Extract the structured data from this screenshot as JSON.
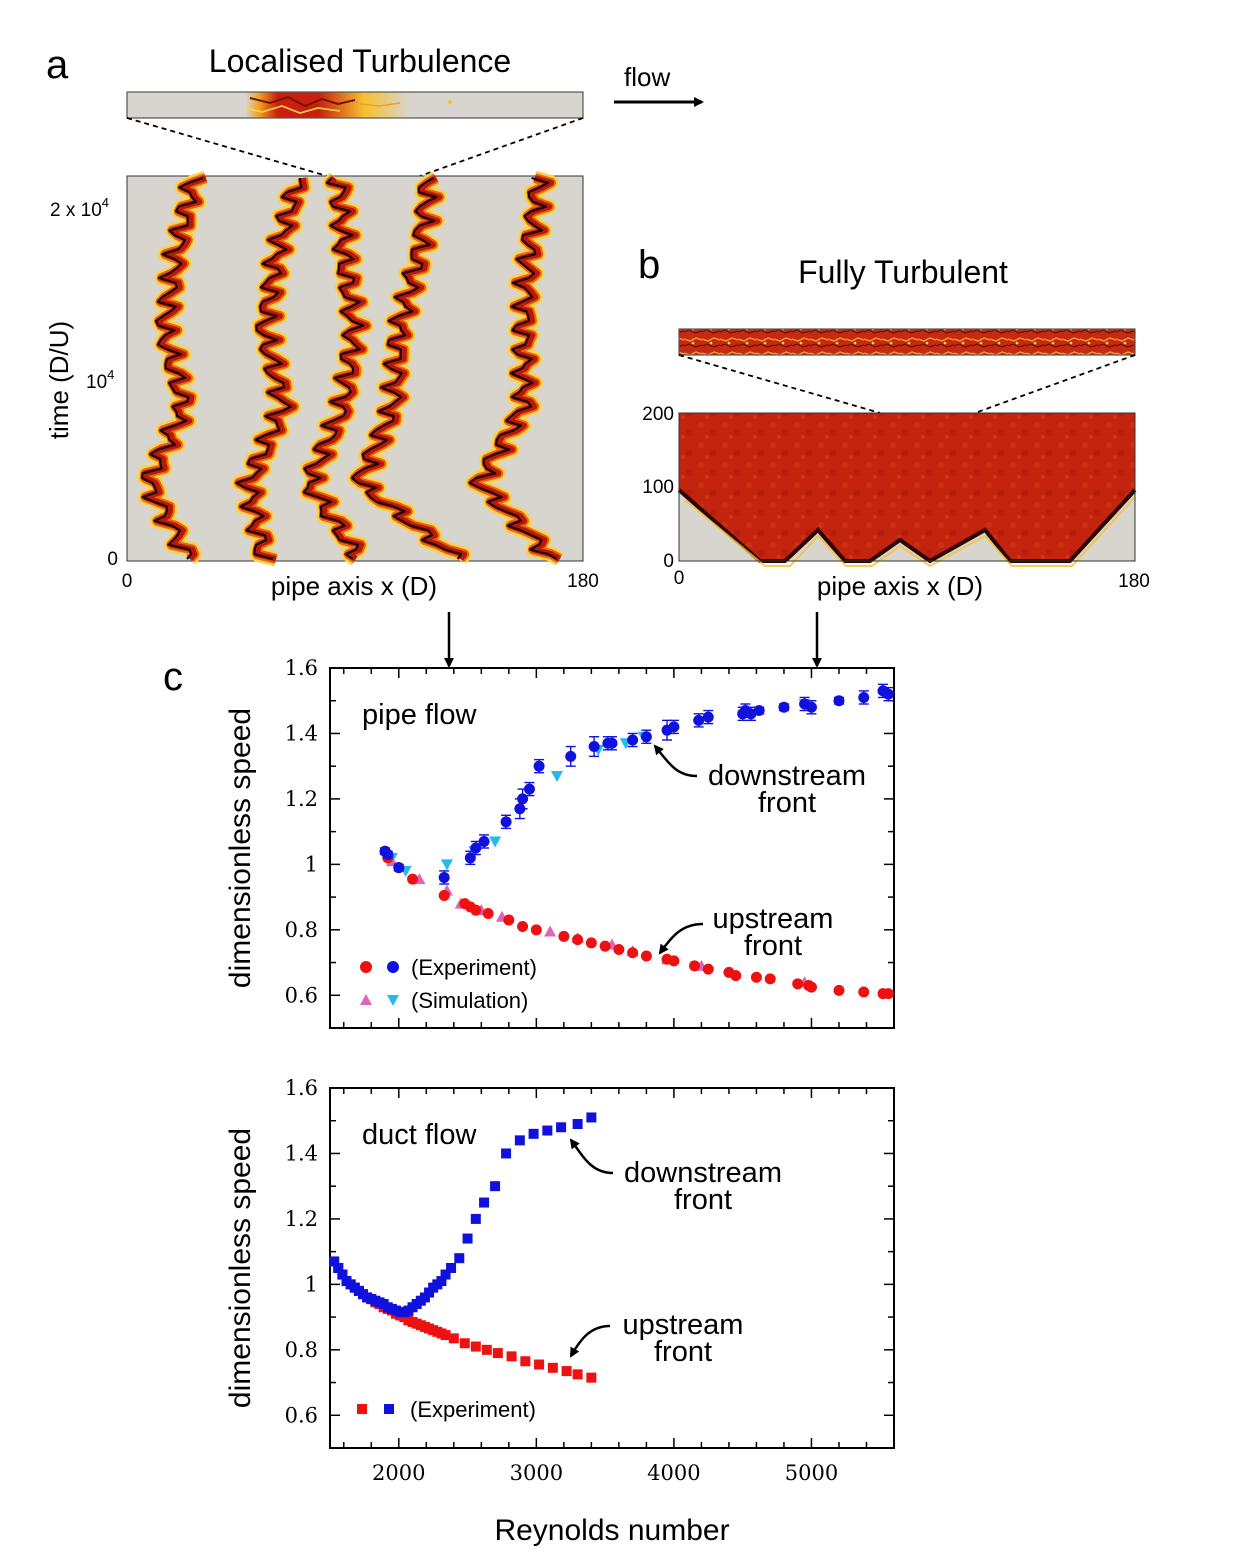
{
  "panel_a": {
    "letter": "a",
    "title": "Localised Turbulence",
    "flow_label": "flow",
    "ylabel": "time (D/U)",
    "ytick_0": "0",
    "ytick_1e4_base": "10",
    "ytick_1e4_exp": "4",
    "ytick_2e4_base": "2 x 10",
    "ytick_2e4_exp": "4",
    "xlabel": "pipe axis x (D)",
    "xtick_0": "0",
    "xtick_180": "180"
  },
  "panel_b": {
    "letter": "b",
    "title": "Fully Turbulent",
    "ytick_0": "0",
    "ytick_100": "100",
    "ytick_200": "200",
    "xlabel": "pipe axis x (D)",
    "xtick_0": "0",
    "xtick_180": "180"
  },
  "panel_c": {
    "letter": "c"
  },
  "colors": {
    "experiment_upstream": "#ee1111",
    "experiment_downstream": "#1111dd",
    "simulation_upstream": "#dd66bb",
    "simulation_downstream": "#22bbee",
    "laminar_gray": "#d8d5cf",
    "turbulent_red": "#c8200c"
  },
  "chart_data": [
    {
      "type": "scatter",
      "name_label": "pipe flow",
      "ylabel": "dimensionless speed",
      "xlabel": "",
      "xlim": [
        1500,
        5600
      ],
      "ylim": [
        0.5,
        1.6
      ],
      "yticks": [
        "0.6",
        "0.8",
        "1",
        "1.2",
        "1.4",
        "1.6"
      ],
      "annotations": {
        "downstream_line1": "downstream",
        "downstream_line2": "front",
        "upstream_line1": "upstream",
        "upstream_line2": "front"
      },
      "legend": {
        "experiment": "(Experiment)",
        "simulation": "(Simulation)"
      },
      "series": [
        {
          "role": "experiment-downstream",
          "x": [
            1900,
            1920,
            2000,
            2330,
            2520,
            2560,
            2620,
            2780,
            2880,
            2900,
            2950,
            3020,
            3250,
            3420,
            3520,
            3550,
            3700,
            3800,
            3950,
            4000,
            4180,
            4250,
            4500,
            4520,
            4560,
            4620,
            4800,
            4950,
            5000,
            5200,
            5380,
            5520,
            5560
          ],
          "y": [
            1.04,
            1.03,
            0.99,
            0.96,
            1.02,
            1.05,
            1.07,
            1.13,
            1.17,
            1.2,
            1.23,
            1.3,
            1.33,
            1.36,
            1.37,
            1.37,
            1.38,
            1.39,
            1.41,
            1.42,
            1.44,
            1.45,
            1.46,
            1.47,
            1.46,
            1.47,
            1.48,
            1.49,
            1.48,
            1.5,
            1.51,
            1.53,
            1.52
          ],
          "err": [
            0.01,
            0.01,
            0.01,
            0.02,
            0.02,
            0.02,
            0.02,
            0.02,
            0.03,
            0.03,
            0.02,
            0.02,
            0.03,
            0.03,
            0.02,
            0.02,
            0.02,
            0.02,
            0.03,
            0.02,
            0.02,
            0.02,
            0.02,
            0.02,
            0.02,
            0.01,
            0.01,
            0.02,
            0.02,
            0.01,
            0.02,
            0.02,
            0.02
          ]
        },
        {
          "role": "simulation-downstream",
          "x": [
            1950,
            2050,
            2350,
            2550,
            2700,
            3150,
            3450,
            3650,
            3780,
            4950
          ],
          "y": [
            1.02,
            0.98,
            1.0,
            1.04,
            1.07,
            1.27,
            1.35,
            1.37,
            1.39,
            1.49
          ]
        },
        {
          "role": "experiment-upstream",
          "x": [
            1900,
            1920,
            2000,
            2100,
            2330,
            2480,
            2520,
            2560,
            2650,
            2800,
            2900,
            3000,
            3200,
            3300,
            3400,
            3500,
            3600,
            3700,
            3800,
            3950,
            4000,
            4150,
            4250,
            4400,
            4450,
            4600,
            4700,
            4900,
            4980,
            5000,
            5200,
            5380,
            5520,
            5560
          ],
          "y": [
            1.04,
            1.02,
            0.99,
            0.955,
            0.905,
            0.88,
            0.87,
            0.86,
            0.85,
            0.83,
            0.81,
            0.8,
            0.78,
            0.77,
            0.76,
            0.75,
            0.74,
            0.73,
            0.72,
            0.71,
            0.705,
            0.69,
            0.68,
            0.67,
            0.66,
            0.655,
            0.65,
            0.635,
            0.63,
            0.625,
            0.615,
            0.61,
            0.605,
            0.605
          ]
        },
        {
          "role": "simulation-upstream",
          "x": [
            1950,
            2150,
            2350,
            2450,
            2600,
            2750,
            3100,
            3300,
            3550,
            3700,
            3950,
            4200,
            4950
          ],
          "y": [
            1.01,
            0.955,
            0.92,
            0.88,
            0.86,
            0.84,
            0.795,
            0.775,
            0.755,
            0.735,
            0.71,
            0.69,
            0.64
          ]
        }
      ]
    },
    {
      "type": "scatter",
      "name_label": "duct flow",
      "ylabel": "dimensionless speed",
      "xlabel": "Reynolds number",
      "xlim": [
        1500,
        5600
      ],
      "ylim": [
        0.5,
        1.6
      ],
      "xticks": [
        "2000",
        "3000",
        "4000",
        "5000"
      ],
      "yticks": [
        "0.6",
        "0.8",
        "1",
        "1.2",
        "1.4",
        "1.6"
      ],
      "annotations": {
        "downstream_line1": "downstream",
        "downstream_line2": "front",
        "upstream_line1": "upstream",
        "upstream_line2": "front"
      },
      "legend": {
        "experiment": "(Experiment)"
      },
      "series": [
        {
          "role": "experiment-downstream",
          "x": [
            1530,
            1560,
            1590,
            1620,
            1650,
            1680,
            1710,
            1740,
            1770,
            1800,
            1830,
            1860,
            1890,
            1920,
            1950,
            1980,
            2010,
            2040,
            2070,
            2100,
            2130,
            2160,
            2190,
            2220,
            2250,
            2280,
            2310,
            2340,
            2380,
            2440,
            2500,
            2560,
            2620,
            2700,
            2780,
            2880,
            2980,
            3080,
            3180,
            3300,
            3400
          ],
          "y": [
            1.07,
            1.05,
            1.03,
            1.01,
            1.0,
            0.99,
            0.98,
            0.97,
            0.96,
            0.955,
            0.95,
            0.945,
            0.94,
            0.93,
            0.925,
            0.92,
            0.915,
            0.915,
            0.92,
            0.93,
            0.94,
            0.95,
            0.96,
            0.975,
            0.99,
            1.0,
            1.01,
            1.03,
            1.05,
            1.08,
            1.14,
            1.2,
            1.25,
            1.3,
            1.4,
            1.44,
            1.46,
            1.47,
            1.48,
            1.49,
            1.51
          ]
        },
        {
          "role": "experiment-upstream",
          "x": [
            1530,
            1560,
            1590,
            1620,
            1650,
            1680,
            1710,
            1740,
            1770,
            1800,
            1830,
            1860,
            1890,
            1920,
            1950,
            1980,
            2010,
            2040,
            2070,
            2100,
            2130,
            2160,
            2190,
            2220,
            2250,
            2280,
            2310,
            2340,
            2400,
            2480,
            2560,
            2640,
            2720,
            2820,
            2920,
            3020,
            3120,
            3220,
            3300,
            3400
          ],
          "y": [
            1.07,
            1.05,
            1.03,
            1.01,
            1.0,
            0.99,
            0.98,
            0.97,
            0.96,
            0.955,
            0.945,
            0.94,
            0.93,
            0.925,
            0.92,
            0.91,
            0.905,
            0.9,
            0.89,
            0.885,
            0.88,
            0.875,
            0.87,
            0.865,
            0.86,
            0.855,
            0.85,
            0.845,
            0.835,
            0.82,
            0.81,
            0.8,
            0.79,
            0.78,
            0.765,
            0.755,
            0.745,
            0.735,
            0.725,
            0.715
          ]
        }
      ]
    }
  ]
}
